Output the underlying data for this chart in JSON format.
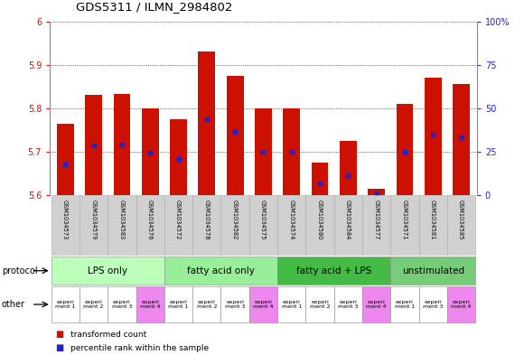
{
  "title": "GDS5311 / ILMN_2984802",
  "samples": [
    "GSM1034573",
    "GSM1034579",
    "GSM1034583",
    "GSM1034576",
    "GSM1034572",
    "GSM1034578",
    "GSM1034582",
    "GSM1034575",
    "GSM1034574",
    "GSM1034580",
    "GSM1034584",
    "GSM1034577",
    "GSM1034571",
    "GSM1034581",
    "GSM1034585"
  ],
  "bar_values": [
    5.765,
    5.83,
    5.832,
    5.8,
    5.775,
    5.93,
    5.875,
    5.8,
    5.8,
    5.675,
    5.725,
    5.615,
    5.81,
    5.87,
    5.855
  ],
  "blue_values": [
    5.67,
    5.715,
    5.716,
    5.698,
    5.683,
    5.775,
    5.745,
    5.7,
    5.7,
    5.628,
    5.645,
    5.605,
    5.7,
    5.74,
    5.733
  ],
  "ymin": 5.6,
  "ymax": 6.0,
  "ytick_vals": [
    5.6,
    5.7,
    5.8,
    5.9,
    6.0
  ],
  "ytick_labels": [
    "5.6",
    "5.7",
    "5.8",
    "5.9",
    "6"
  ],
  "y2min": 0,
  "y2max": 100,
  "y2tick_vals": [
    0,
    25,
    50,
    75,
    100
  ],
  "y2tick_labels": [
    "0",
    "25",
    "50",
    "75",
    "100%"
  ],
  "bar_color": "#cc1100",
  "blue_color": "#2222cc",
  "bar_width": 0.6,
  "protocol_groups": [
    {
      "label": "LPS only",
      "start": 0,
      "end": 4,
      "color": "#bbffbb"
    },
    {
      "label": "fatty acid only",
      "start": 4,
      "end": 8,
      "color": "#99ee99"
    },
    {
      "label": "fatty acid + LPS",
      "start": 8,
      "end": 12,
      "color": "#44bb44"
    },
    {
      "label": "unstimulated",
      "start": 12,
      "end": 15,
      "color": "#77cc77"
    }
  ],
  "other_colors": [
    "#ffffff",
    "#ffffff",
    "#ffffff",
    "#ee88ee",
    "#ffffff",
    "#ffffff",
    "#ffffff",
    "#ee88ee",
    "#ffffff",
    "#ffffff",
    "#ffffff",
    "#ee88ee",
    "#ffffff",
    "#ffffff",
    "#ee88ee"
  ],
  "other_labels": [
    "experi\nment 1",
    "experi\nment 2",
    "experi\nment 3",
    "experi\nment 4",
    "experi\nment 1",
    "experi\nment 2",
    "experi\nment 3",
    "experi\nment 4",
    "experi\nment 1",
    "experi\nment 2",
    "experi\nment 3",
    "experi\nment 4",
    "experi\nment 1",
    "experi\nment 3",
    "experi\nment 4"
  ],
  "sample_bg": "#d0d0d0",
  "sample_border": "#aaaaaa"
}
